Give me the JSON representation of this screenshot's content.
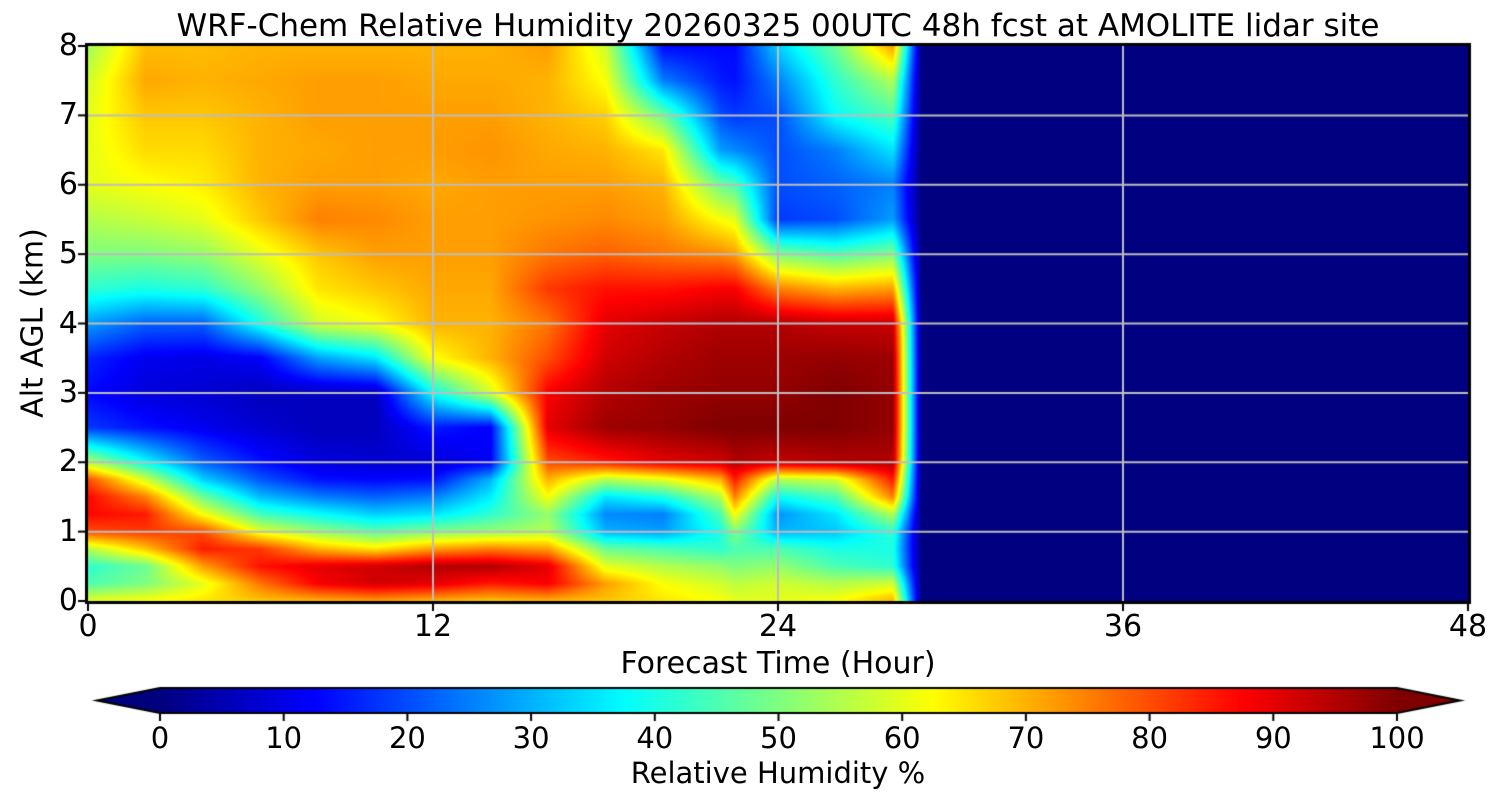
{
  "title": "WRF-Chem Relative Humidity 20260325 00UTC 48h fcst at AMOLITE lidar site",
  "colors": {
    "background": "#ffffff",
    "axis": "#000000",
    "gridline": "#bdbdbd",
    "text": "#000000",
    "no_data_fill": "#000080"
  },
  "chart_data": {
    "type": "heatmap",
    "title": "WRF-Chem Relative Humidity 20260325 00UTC 48h fcst at AMOLITE lidar site",
    "xlabel": "Forecast Time (Hour)",
    "ylabel": "Alt AGL (km)",
    "xlim": [
      0,
      48
    ],
    "ylim": [
      0,
      8
    ],
    "x_ticks": [
      0,
      12,
      24,
      36,
      48
    ],
    "y_ticks": [
      0,
      1,
      2,
      3,
      4,
      5,
      6,
      7,
      8
    ],
    "grid": true,
    "colormap": "jet",
    "colorbar": {
      "label": "Relative Humidity %",
      "ticks": [
        0,
        10,
        20,
        30,
        40,
        50,
        60,
        70,
        80,
        90,
        100
      ],
      "min": 0,
      "max": 100,
      "extend": "both"
    },
    "note_visible_in_pixels": "forecast data ends near hour 29; hours 29-48 are uniform dark navy (RH 0)",
    "hours": [
      0,
      2,
      4,
      6,
      8,
      10,
      12,
      14,
      16,
      18,
      20,
      22,
      22.5,
      24,
      26,
      28,
      29,
      30,
      48
    ],
    "altitudes_km": [
      0,
      0.25,
      0.5,
      0.75,
      1,
      1.25,
      1.5,
      1.75,
      2,
      2.5,
      3,
      3.5,
      4,
      4.5,
      5,
      5.5,
      6,
      6.5,
      7,
      7.5,
      8
    ],
    "rh_percent": [
      [
        60,
        45,
        42,
        55,
        80,
        87,
        87,
        80,
        55,
        18,
        13,
        16,
        28,
        42,
        50,
        55,
        60,
        60,
        60,
        58,
        53
      ],
      [
        62,
        50,
        48,
        68,
        82,
        85,
        75,
        58,
        38,
        14,
        9,
        11,
        22,
        40,
        50,
        57,
        62,
        66,
        68,
        71,
        69
      ],
      [
        65,
        60,
        72,
        85,
        80,
        62,
        48,
        33,
        22,
        11,
        8,
        10,
        22,
        42,
        52,
        60,
        64,
        66,
        68,
        70,
        69
      ],
      [
        68,
        76,
        86,
        82,
        60,
        44,
        31,
        21,
        14,
        8,
        6,
        12,
        40,
        52,
        60,
        68,
        70,
        70,
        70,
        71,
        70
      ],
      [
        70,
        88,
        90,
        70,
        52,
        38,
        25,
        14,
        9,
        6,
        6,
        28,
        58,
        65,
        68,
        75,
        72,
        71,
        72,
        72,
        70
      ],
      [
        72,
        92,
        92,
        65,
        46,
        33,
        22,
        13,
        8,
        6,
        6,
        35,
        62,
        68,
        72,
        74,
        72,
        72,
        72,
        72,
        70
      ],
      [
        70,
        90,
        95,
        72,
        50,
        35,
        25,
        14,
        8,
        15,
        38,
        62,
        70,
        71,
        72,
        72,
        71,
        72,
        72,
        71,
        70
      ],
      [
        68,
        85,
        95,
        75,
        52,
        42,
        36,
        30,
        12,
        12,
        58,
        70,
        70,
        71,
        72,
        72,
        72,
        73,
        72,
        71,
        70
      ],
      [
        70,
        88,
        90,
        72,
        55,
        52,
        62,
        70,
        80,
        90,
        88,
        80,
        76,
        82,
        76,
        73,
        72,
        71,
        70,
        70,
        72
      ],
      [
        68,
        72,
        60,
        48,
        30,
        26,
        35,
        55,
        85,
        97,
        95,
        92,
        90,
        86,
        78,
        74,
        72,
        70,
        67,
        62,
        58
      ],
      [
        65,
        62,
        55,
        45,
        28,
        25,
        40,
        60,
        90,
        98,
        97,
        95,
        93,
        86,
        76,
        72,
        70,
        65,
        48,
        25,
        13
      ],
      [
        62,
        58,
        52,
        42,
        40,
        45,
        55,
        70,
        92,
        100,
        98,
        97,
        95,
        88,
        74,
        62,
        48,
        28,
        20,
        15,
        13
      ],
      [
        60,
        56,
        50,
        45,
        50,
        62,
        75,
        85,
        95,
        100,
        98,
        97,
        95,
        88,
        72,
        60,
        45,
        26,
        18,
        14,
        13
      ],
      [
        60,
        58,
        52,
        45,
        30,
        27,
        38,
        55,
        93,
        100,
        98,
        97,
        95,
        75,
        50,
        18,
        20,
        20,
        20,
        25,
        33
      ],
      [
        62,
        55,
        45,
        40,
        32,
        35,
        45,
        58,
        95,
        100,
        100,
        98,
        93,
        70,
        45,
        20,
        22,
        25,
        38,
        42,
        48
      ],
      [
        70,
        58,
        42,
        40,
        42,
        55,
        75,
        85,
        95,
        98,
        98,
        97,
        93,
        72,
        50,
        28,
        25,
        35,
        45,
        55,
        72
      ],
      [
        0,
        0,
        0,
        0,
        0,
        0,
        0,
        0,
        0,
        0,
        0,
        0,
        0,
        0,
        0,
        0,
        0,
        0,
        0,
        0,
        0
      ],
      [
        0,
        0,
        0,
        0,
        0,
        0,
        0,
        0,
        0,
        0,
        0,
        0,
        0,
        0,
        0,
        0,
        0,
        0,
        0,
        0,
        0
      ],
      [
        0,
        0,
        0,
        0,
        0,
        0,
        0,
        0,
        0,
        0,
        0,
        0,
        0,
        0,
        0,
        0,
        0,
        0,
        0,
        0,
        0
      ]
    ]
  }
}
